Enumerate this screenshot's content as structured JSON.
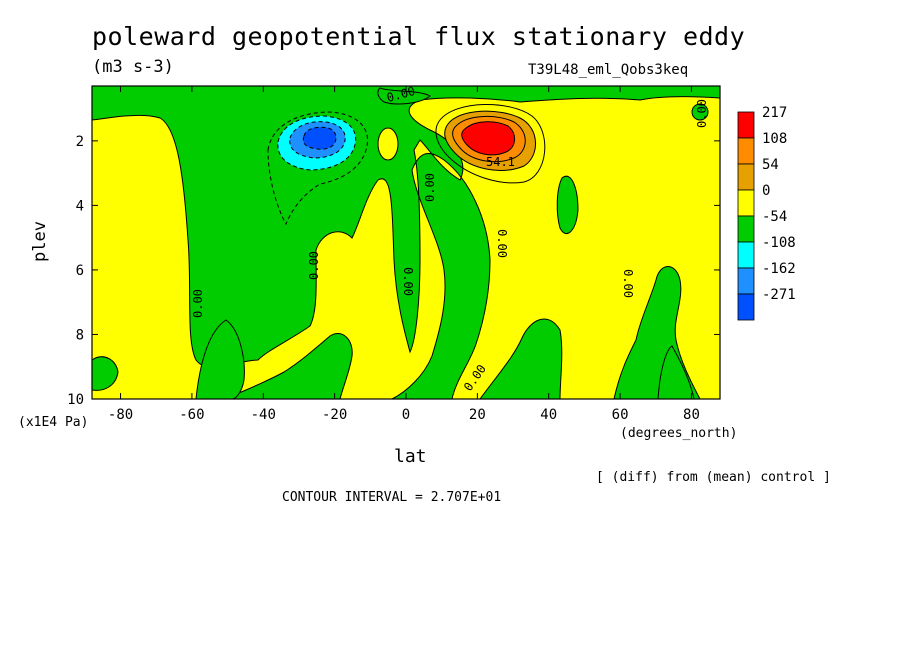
{
  "chart_data": {
    "type": "heatmap",
    "title": "poleward geopotential flux stationary eddy",
    "units": "(m3 s-3)",
    "run_label": "T39L48_eml_Qobs3keq",
    "xlabel": "lat",
    "x_units": "(degrees_north)",
    "ylabel": "plev",
    "y_units": "(x1E4 Pa)",
    "xlim": [
      -88,
      88
    ],
    "ylim": [
      10,
      0.3
    ],
    "x_ticks": [
      "-80",
      "-60",
      "-40",
      "-20",
      "0",
      "20",
      "40",
      "60",
      "80"
    ],
    "x_tick_values": [
      -80,
      -60,
      -40,
      -20,
      0,
      20,
      40,
      60,
      80
    ],
    "y_ticks": [
      "2",
      "4",
      "6",
      "8",
      "10"
    ],
    "y_tick_values": [
      2,
      4,
      6,
      8,
      10
    ],
    "colorbar": {
      "labels": [
        "217",
        "108",
        "54",
        "0",
        "-54",
        "-108",
        "-162",
        "-271"
      ],
      "colors": [
        "#ff0000",
        "#ff8c00",
        "#e6a000",
        "#ffff00",
        "#00cc00",
        "#00ffff",
        "#1e90ff",
        "#0050ff"
      ]
    },
    "contour_labels": [
      "0.00",
      "54.1"
    ],
    "extremes": [
      {
        "lat": 22,
        "plev": 1.8,
        "value": 217
      },
      {
        "lat": -24,
        "plev": 1.8,
        "value": -271
      }
    ],
    "note": "[ (diff) from (mean) control ]",
    "contour_interval": "CONTOUR INTERVAL = 2.707E+01"
  }
}
